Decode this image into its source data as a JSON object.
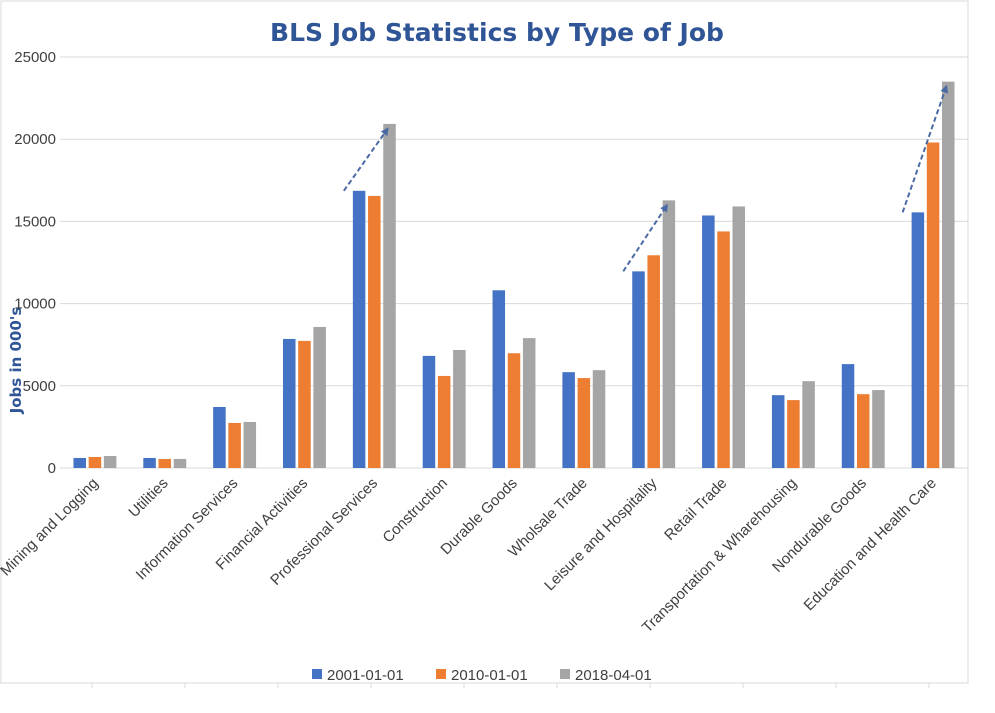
{
  "chart_data": {
    "type": "bar",
    "title": "BLS Job Statistics by Type of Job",
    "xlabel": "",
    "ylabel": "Jobs in 000's",
    "ylim": [
      0,
      25000
    ],
    "yticks": [
      "0",
      "5000",
      "10000",
      "15000",
      "20000",
      "25000"
    ],
    "grid": true,
    "legend_position": "bottom",
    "categories": [
      "Mining and Logging",
      "Utilities",
      "Information Services",
      "Financial Activities",
      "Professional Services",
      "Construction",
      "Durable Goods",
      "Wholsale Trade",
      "Leisure and Hospitality",
      "Retail Trade",
      "Transportation & Wharehousing",
      "Nondurable Goods",
      "Education and Health Care"
    ],
    "series": [
      {
        "name": "2001-01-01",
        "color": "#4472C4",
        "values": [
          610,
          610,
          3710,
          7850,
          16860,
          6820,
          10810,
          5830,
          11960,
          15360,
          4430,
          6320,
          15550
        ]
      },
      {
        "name": "2010-01-01",
        "color": "#ED7D31",
        "values": [
          670,
          550,
          2740,
          7730,
          16550,
          5600,
          6980,
          5470,
          12940,
          14390,
          4130,
          4490,
          19800
        ]
      },
      {
        "name": "2018-04-01",
        "color": "#A5A5A5",
        "values": [
          730,
          550,
          2800,
          8580,
          20930,
          7180,
          7900,
          5950,
          16280,
          15910,
          5280,
          4740,
          23500
        ]
      }
    ],
    "annotations": [
      {
        "type": "dashed-arrow",
        "category": "Professional Services",
        "from_value": 16860,
        "to_value": 20930
      },
      {
        "type": "dashed-arrow",
        "category": "Leisure and Hospitality",
        "from_value": 11960,
        "to_value": 16280
      },
      {
        "type": "dashed-arrow",
        "category": "Education and Health Care",
        "from_value": 15550,
        "to_value": 23500
      }
    ],
    "annotation_color": "#4A6AA5"
  }
}
